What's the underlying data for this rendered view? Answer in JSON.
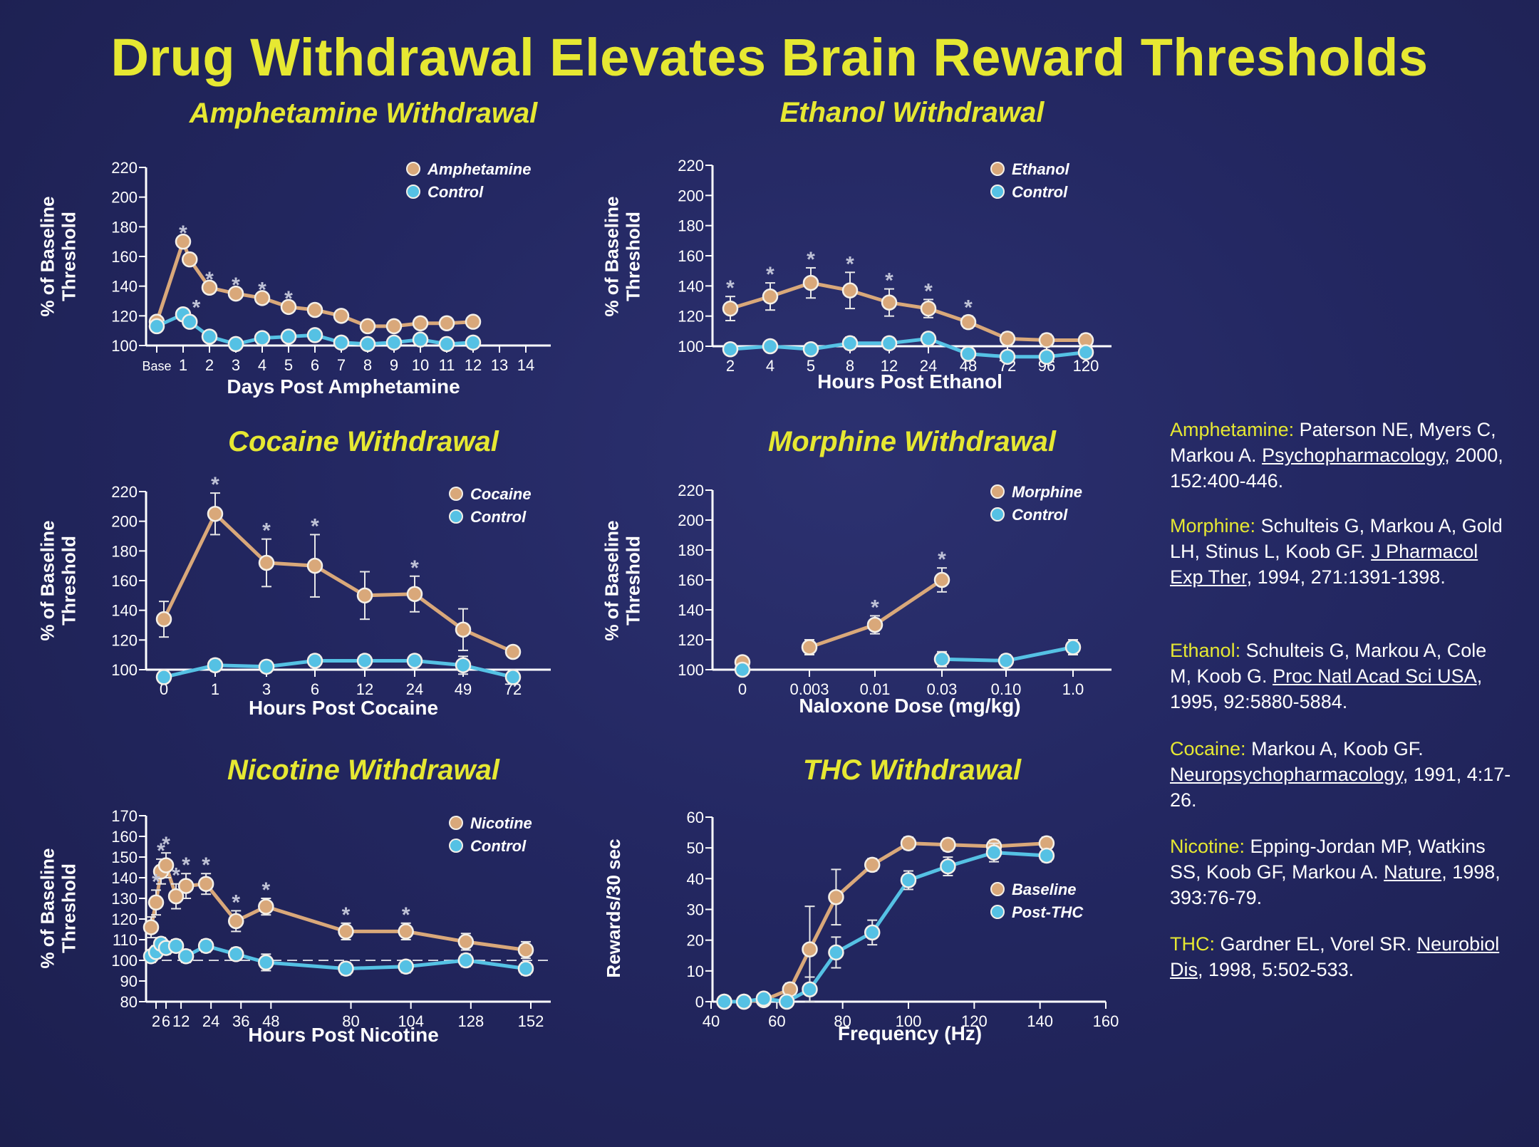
{
  "title": "Drug Withdrawal Elevates Brain Reward Thresholds",
  "colors": {
    "drug": "#d9a87a",
    "control": "#55c1e4",
    "axis": "#ffffff",
    "title": "#e6e832",
    "background": "#232761"
  },
  "chart_data": [
    {
      "id": "amphetamine",
      "type": "line",
      "title": "Amphetamine Withdrawal",
      "xlabel": "Days Post Amphetamine",
      "ylabel": "% of Baseline Threshold",
      "x_ticks": [
        "Base",
        "1",
        "2",
        "3",
        "4",
        "5",
        "6",
        "7",
        "8",
        "9",
        "10",
        "11",
        "12",
        "13",
        "14"
      ],
      "ylim": [
        100,
        220
      ],
      "y_ticks": [
        100,
        120,
        140,
        160,
        180,
        200,
        220
      ],
      "legend": "top-right",
      "series": [
        {
          "name": "Amphetamine",
          "role": "drug",
          "x": [
            0,
            1,
            1.25,
            2,
            3,
            4,
            5,
            6,
            7,
            8,
            9,
            10,
            11,
            12
          ],
          "y": [
            116,
            170,
            158,
            139,
            135,
            132,
            126,
            124,
            120,
            113,
            113,
            115,
            115,
            116
          ]
        },
        {
          "name": "Control",
          "role": "control",
          "x": [
            0,
            1,
            1.25,
            2,
            3,
            4,
            5,
            6,
            7,
            8,
            9,
            10,
            11,
            12
          ],
          "y": [
            113,
            121,
            116,
            106,
            101,
            105,
            106,
            107,
            102,
            101,
            102,
            104,
            101,
            102
          ]
        }
      ],
      "significance_x": [
        1,
        1.5,
        2,
        3,
        4,
        5
      ]
    },
    {
      "id": "ethanol",
      "type": "line",
      "title": "Ethanol Withdrawal",
      "xlabel": "Hours Post Ethanol",
      "ylabel": "% of Baseline Threshold",
      "x_ticks": [
        "2",
        "4",
        "5",
        "8",
        "12",
        "24",
        "48",
        "72",
        "96",
        "120"
      ],
      "ylim": [
        100,
        220
      ],
      "y_ticks": [
        100,
        120,
        140,
        160,
        180,
        200,
        220
      ],
      "legend": "top-right",
      "series": [
        {
          "name": "Ethanol",
          "role": "drug",
          "x": [
            "2",
            "4",
            "5",
            "8",
            "12",
            "24",
            "48",
            "72",
            "96",
            "120"
          ],
          "y": [
            125,
            133,
            142,
            137,
            129,
            125,
            116,
            105,
            104,
            104
          ],
          "error": [
            8,
            9,
            10,
            12,
            9,
            6,
            4,
            4,
            4,
            4
          ]
        },
        {
          "name": "Control",
          "role": "control",
          "x": [
            "2",
            "4",
            "5",
            "8",
            "12",
            "24",
            "48",
            "72",
            "96",
            "120"
          ],
          "y": [
            98,
            100,
            98,
            102,
            102,
            105,
            95,
            93,
            93,
            96
          ],
          "error": [
            3,
            3,
            3,
            4,
            3,
            3,
            3,
            3,
            3,
            3
          ]
        }
      ],
      "significance_x": [
        "2",
        "4",
        "5",
        "8",
        "12",
        "24",
        "48"
      ]
    },
    {
      "id": "cocaine",
      "type": "line",
      "title": "Cocaine Withdrawal",
      "xlabel": "Hours Post Cocaine",
      "ylabel": "% of Baseline Threshold",
      "x_ticks": [
        "0",
        "1",
        "3",
        "6",
        "12",
        "24",
        "49",
        "72"
      ],
      "ylim": [
        100,
        220
      ],
      "y_ticks": [
        100,
        120,
        140,
        160,
        180,
        200,
        220
      ],
      "legend": "top-right",
      "series": [
        {
          "name": "Cocaine",
          "role": "drug",
          "x": [
            "0",
            "1",
            "3",
            "6",
            "12",
            "24",
            "49",
            "72"
          ],
          "y": [
            134,
            205,
            172,
            170,
            150,
            151,
            127,
            112
          ],
          "error": [
            12,
            14,
            16,
            21,
            16,
            12,
            14,
            3
          ]
        },
        {
          "name": "Control",
          "role": "control",
          "x": [
            "0",
            "1",
            "3",
            "6",
            "12",
            "24",
            "49",
            "72"
          ],
          "y": [
            95,
            103,
            102,
            106,
            106,
            106,
            103,
            95
          ],
          "error": [
            3,
            4,
            4,
            4,
            4,
            4,
            6,
            3
          ]
        }
      ],
      "significance_x": [
        "1",
        "3",
        "6",
        "24"
      ]
    },
    {
      "id": "morphine",
      "type": "line",
      "title": "Morphine Withdrawal",
      "xlabel": "Naloxone Dose (mg/kg)",
      "ylabel": "% of Baseline Threshold",
      "x_ticks": [
        "0",
        "0.003",
        "0.01",
        "0.03",
        "0.10",
        "1.0"
      ],
      "ylim": [
        100,
        220
      ],
      "y_ticks": [
        100,
        120,
        140,
        160,
        180,
        200,
        220
      ],
      "legend": "top-right",
      "series": [
        {
          "name": "Morphine",
          "role": "drug",
          "x": [
            "0",
            "0.003",
            "0.01",
            "0.03"
          ],
          "y": [
            105,
            115,
            130,
            160
          ],
          "error": [
            3,
            5,
            6,
            8
          ],
          "segments": [
            [
              0,
              0
            ],
            [
              1,
              3
            ]
          ]
        },
        {
          "name": "Control",
          "role": "control",
          "x": [
            "0",
            "0.03",
            "0.10",
            "1.0"
          ],
          "y": [
            100,
            107,
            106,
            115
          ],
          "error": [
            3,
            5,
            4,
            5
          ],
          "segments": [
            [
              0,
              0
            ],
            [
              1,
              3
            ]
          ]
        }
      ],
      "significance_x": [
        "0.01",
        "0.03"
      ]
    },
    {
      "id": "nicotine",
      "type": "line",
      "title": "Nicotine Withdrawal",
      "xlabel": "Hours Post Nicotine",
      "ylabel": "% of Baseline Threshold",
      "x_tick_labels": [
        "2",
        "6",
        "12",
        "24",
        "36",
        "48",
        "80",
        "104",
        "128",
        "152"
      ],
      "x_tick_values": [
        2,
        6,
        12,
        24,
        36,
        48,
        80,
        104,
        128,
        152
      ],
      "xlim": [
        0,
        152
      ],
      "ylim": [
        80,
        170
      ],
      "y_ticks": [
        80,
        90,
        100,
        110,
        120,
        130,
        140,
        150,
        160,
        170
      ],
      "legend": "top-right",
      "reference_line": 100,
      "series": [
        {
          "name": "Nicotine",
          "role": "drug",
          "x": [
            0,
            2,
            4,
            6,
            10,
            14,
            22,
            34,
            46,
            78,
            102,
            126,
            150
          ],
          "y": [
            116,
            128,
            143,
            146,
            131,
            136,
            137,
            119,
            126,
            114,
            114,
            109,
            105
          ],
          "error": [
            5,
            6,
            6,
            6,
            6,
            6,
            5,
            5,
            4,
            4,
            4,
            4,
            4
          ]
        },
        {
          "name": "Control",
          "role": "control",
          "x": [
            0,
            2,
            4,
            6,
            10,
            14,
            22,
            34,
            46,
            78,
            102,
            126,
            150
          ],
          "y": [
            102,
            104,
            108,
            106,
            107,
            102,
            107,
            103,
            99,
            96,
            97,
            100,
            96
          ],
          "error": [
            3,
            3,
            3,
            3,
            3,
            3,
            3,
            3,
            4,
            3,
            3,
            3,
            3
          ]
        }
      ],
      "significance_x": [
        2,
        4,
        6,
        10,
        14,
        22,
        34,
        46,
        78,
        102
      ]
    },
    {
      "id": "thc",
      "type": "line",
      "title": "THC Withdrawal",
      "xlabel": "Frequency (Hz)",
      "ylabel": "Rewards/30 sec",
      "x_ticks": [
        40,
        60,
        80,
        100,
        120,
        140,
        160
      ],
      "xlim": [
        40,
        160
      ],
      "ylim": [
        0,
        60
      ],
      "y_ticks": [
        0,
        10,
        20,
        30,
        40,
        50,
        60
      ],
      "legend": "right",
      "series": [
        {
          "name": "Baseline",
          "role": "drug",
          "x": [
            44,
            50,
            56,
            64,
            70,
            78,
            89,
            100,
            112,
            126,
            142
          ],
          "y": [
            0,
            0,
            0.5,
            4,
            17,
            34,
            44.5,
            51.5,
            51,
            50.5,
            51.5
          ],
          "error": [
            0.5,
            0.5,
            0.5,
            2,
            14,
            9,
            2,
            2,
            2,
            2,
            2
          ]
        },
        {
          "name": "Post-THC",
          "role": "control",
          "x": [
            44,
            50,
            56,
            63,
            70,
            78,
            89,
            100,
            112,
            126,
            142
          ],
          "y": [
            0,
            0,
            1,
            0,
            4,
            16,
            22.5,
            39.5,
            44,
            48.5,
            47.5
          ],
          "error": [
            0.5,
            0.5,
            0.5,
            0.5,
            4,
            5,
            4,
            3,
            3,
            3,
            2
          ]
        }
      ],
      "significance_x": []
    }
  ],
  "references": [
    {
      "drug": "Amphetamine:",
      "pre": " Paterson NE, Myers C, Markou A. ",
      "journal": "Psychopharmacology",
      "post": ", 2000, 152:400-446."
    },
    {
      "drug": "Morphine:",
      "pre": " Schulteis G, Markou A, Gold LH, Stinus L, Koob GF. ",
      "journal": "J Pharmacol Exp Ther",
      "post": ", 1994, 271:1391-1398."
    },
    {
      "drug": "Ethanol:",
      "pre": " Schulteis G, Markou A, Cole M, Koob G. ",
      "journal": "Proc Natl Acad Sci USA",
      "post": ", 1995, 92:5880-5884."
    },
    {
      "drug": "Cocaine:",
      "pre": " Markou A, Koob GF. ",
      "journal": "Neuropsychopharmacology",
      "post": ", 1991, 4:17-26."
    },
    {
      "drug": "Nicotine:",
      "pre": " Epping-Jordan MP, Watkins SS, Koob GF, Markou A. ",
      "journal": "Nature",
      "post": ", 1998, 393:76-79."
    },
    {
      "drug": "THC:",
      "pre": " Gardner EL, Vorel SR. ",
      "journal": "Neurobiol Dis",
      "post": ", 1998, 5:502-533."
    }
  ]
}
